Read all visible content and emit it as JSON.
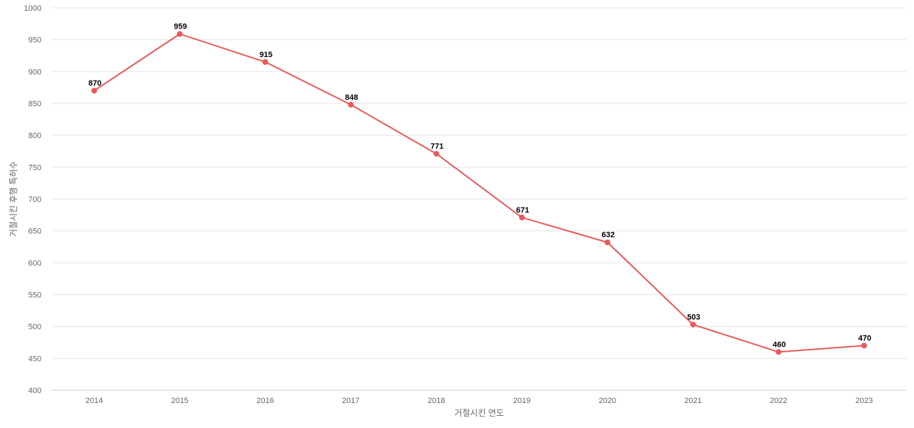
{
  "chart_data": {
    "type": "line",
    "x": [
      "2014",
      "2015",
      "2016",
      "2017",
      "2018",
      "2019",
      "2020",
      "2021",
      "2022",
      "2023"
    ],
    "series": [
      {
        "values": [
          870,
          959,
          915,
          848,
          771,
          671,
          632,
          503,
          460,
          470
        ],
        "color": "#e85a5a"
      }
    ],
    "xlabel": "거절시킨 연도",
    "ylabel": "거절시킨 후행 특허수",
    "ylim": [
      400,
      1000
    ],
    "yticks": [
      400,
      450,
      500,
      550,
      600,
      650,
      700,
      750,
      800,
      850,
      900,
      950,
      1000
    ],
    "grid": true,
    "data_labels": true
  }
}
